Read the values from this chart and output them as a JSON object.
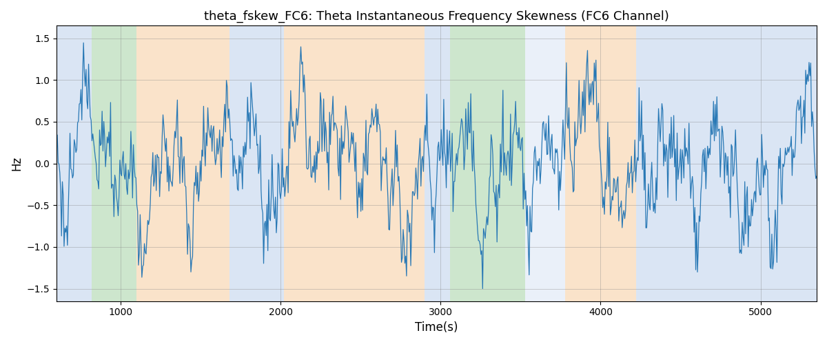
{
  "title": "theta_fskew_FC6: Theta Instantaneous Frequency Skewness (FC6 Channel)",
  "xlabel": "Time(s)",
  "ylabel": "Hz",
  "xlim": [
    600,
    5350
  ],
  "ylim": [
    -1.65,
    1.65
  ],
  "yticks": [
    -1.5,
    -1.0,
    -0.5,
    0.0,
    0.5,
    1.0,
    1.5
  ],
  "xticks": [
    1000,
    2000,
    3000,
    4000,
    5000
  ],
  "line_color": "#2878b5",
  "line_width": 0.9,
  "regions": [
    {
      "xmin": 600,
      "xmax": 820,
      "color": "#aec6e8",
      "alpha": 0.45
    },
    {
      "xmin": 820,
      "xmax": 1100,
      "color": "#90c990",
      "alpha": 0.45
    },
    {
      "xmin": 1100,
      "xmax": 1680,
      "color": "#f5c18a",
      "alpha": 0.45
    },
    {
      "xmin": 1680,
      "xmax": 2020,
      "color": "#aec6e8",
      "alpha": 0.45
    },
    {
      "xmin": 2020,
      "xmax": 2900,
      "color": "#f5c18a",
      "alpha": 0.45
    },
    {
      "xmin": 2900,
      "xmax": 3060,
      "color": "#aec6e8",
      "alpha": 0.45
    },
    {
      "xmin": 3060,
      "xmax": 3530,
      "color": "#90c990",
      "alpha": 0.45
    },
    {
      "xmin": 3530,
      "xmax": 3780,
      "color": "#aec6e8",
      "alpha": 0.25
    },
    {
      "xmin": 3780,
      "xmax": 4220,
      "color": "#f5c18a",
      "alpha": 0.45
    },
    {
      "xmin": 4220,
      "xmax": 5350,
      "color": "#aec6e8",
      "alpha": 0.45
    }
  ],
  "seed": 42,
  "n_points": 900,
  "t_start": 600,
  "t_end": 5350
}
